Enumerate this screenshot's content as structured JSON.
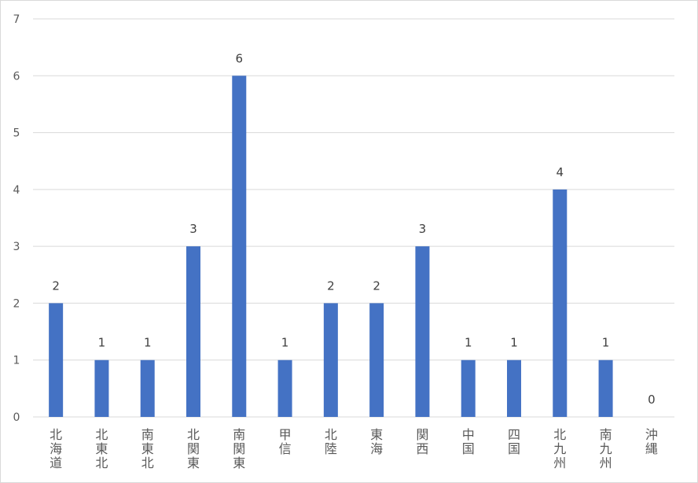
{
  "chart_data": {
    "type": "bar",
    "categories": [
      "北海道",
      "北東北",
      "南東北",
      "北関東",
      "南関東",
      "甲信",
      "北陸",
      "東海",
      "関西",
      "中国",
      "四国",
      "北九州",
      "南九州",
      "沖縄"
    ],
    "values": [
      2,
      1,
      1,
      3,
      6,
      1,
      2,
      2,
      3,
      1,
      1,
      4,
      1,
      0
    ],
    "data_labels": [
      "2",
      "1",
      "1",
      "3",
      "6",
      "1",
      "2",
      "2",
      "3",
      "1",
      "1",
      "4",
      "1",
      "0"
    ],
    "y_ticks": [
      "0",
      "1",
      "2",
      "3",
      "4",
      "5",
      "6",
      "7"
    ],
    "ylim": [
      0,
      7
    ],
    "grid": true,
    "bar_color": "#4472c4",
    "grid_color": "#d9d9d9"
  }
}
